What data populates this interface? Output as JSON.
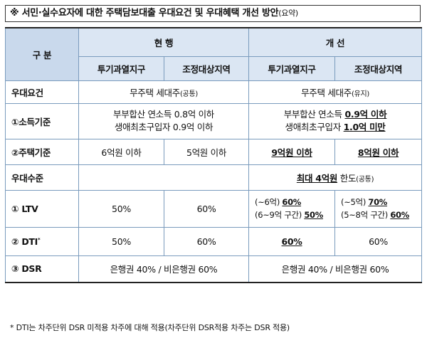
{
  "title": {
    "main": "※ 서민·실수요자에 대한 주택담보대출 우대요건 및 우대혜택 개선 방안",
    "suffix": "(요약)"
  },
  "header": {
    "category": "구 분",
    "current": "현 행",
    "improved": "개 선",
    "col_speculation": "투기과열지구",
    "col_adjustment": "조정대상지역"
  },
  "rows": {
    "requirement": {
      "label": "우대요건",
      "current": "무주택 세대주",
      "current_note": "(공통)",
      "improved": "무주택 세대주",
      "improved_note": "(유지)"
    },
    "income": {
      "label": "①소득기준",
      "current_line1": "부부합산 연소득 0.8억 이하",
      "current_line2": "생애최초구입자 0.9억 이하",
      "improved_line1_prefix": "부부합산 연소득 ",
      "improved_line1_value": "0.9억 이하",
      "improved_line2_prefix": "생애최초구입자 ",
      "improved_line2_value": "1.0억 미만"
    },
    "house": {
      "label": "②주택기준",
      "current_spec": "6억원 이하",
      "current_adj": "5억원 이하",
      "improved_spec": "9억원 이하",
      "improved_adj": "8억원 이하"
    },
    "level": {
      "label": "우대수준",
      "improved_value": "최대 4억원",
      "improved_suffix": " 한도",
      "improved_note": "(공통)"
    },
    "ltv": {
      "label": "① LTV",
      "current_spec": "50%",
      "current_adj": "60%",
      "spec_line1_prefix": "(~6억) ",
      "spec_line1_value": "60%",
      "spec_line2_prefix": "(6~9억 구간) ",
      "spec_line2_value": "50%",
      "adj_line1_prefix": "(~5억) ",
      "adj_line1_value": "70%",
      "adj_line2_prefix": "(5~8억 구간) ",
      "adj_line2_value": "60%"
    },
    "dti": {
      "label": "② DTI",
      "mark": "*",
      "current_spec": "50%",
      "current_adj": "60%",
      "improved_spec": "60%",
      "improved_adj": "60%"
    },
    "dsr": {
      "label": "③ DSR",
      "current": "은행권 40% / 비은행권 60%",
      "improved": "은행권 40% / 비은행권 60%"
    }
  },
  "footnote": "* DTI는 차주단위 DSR 미적용 차주에 대해 적용(차주단위 DSR적용 차주는 DSR 적용)"
}
